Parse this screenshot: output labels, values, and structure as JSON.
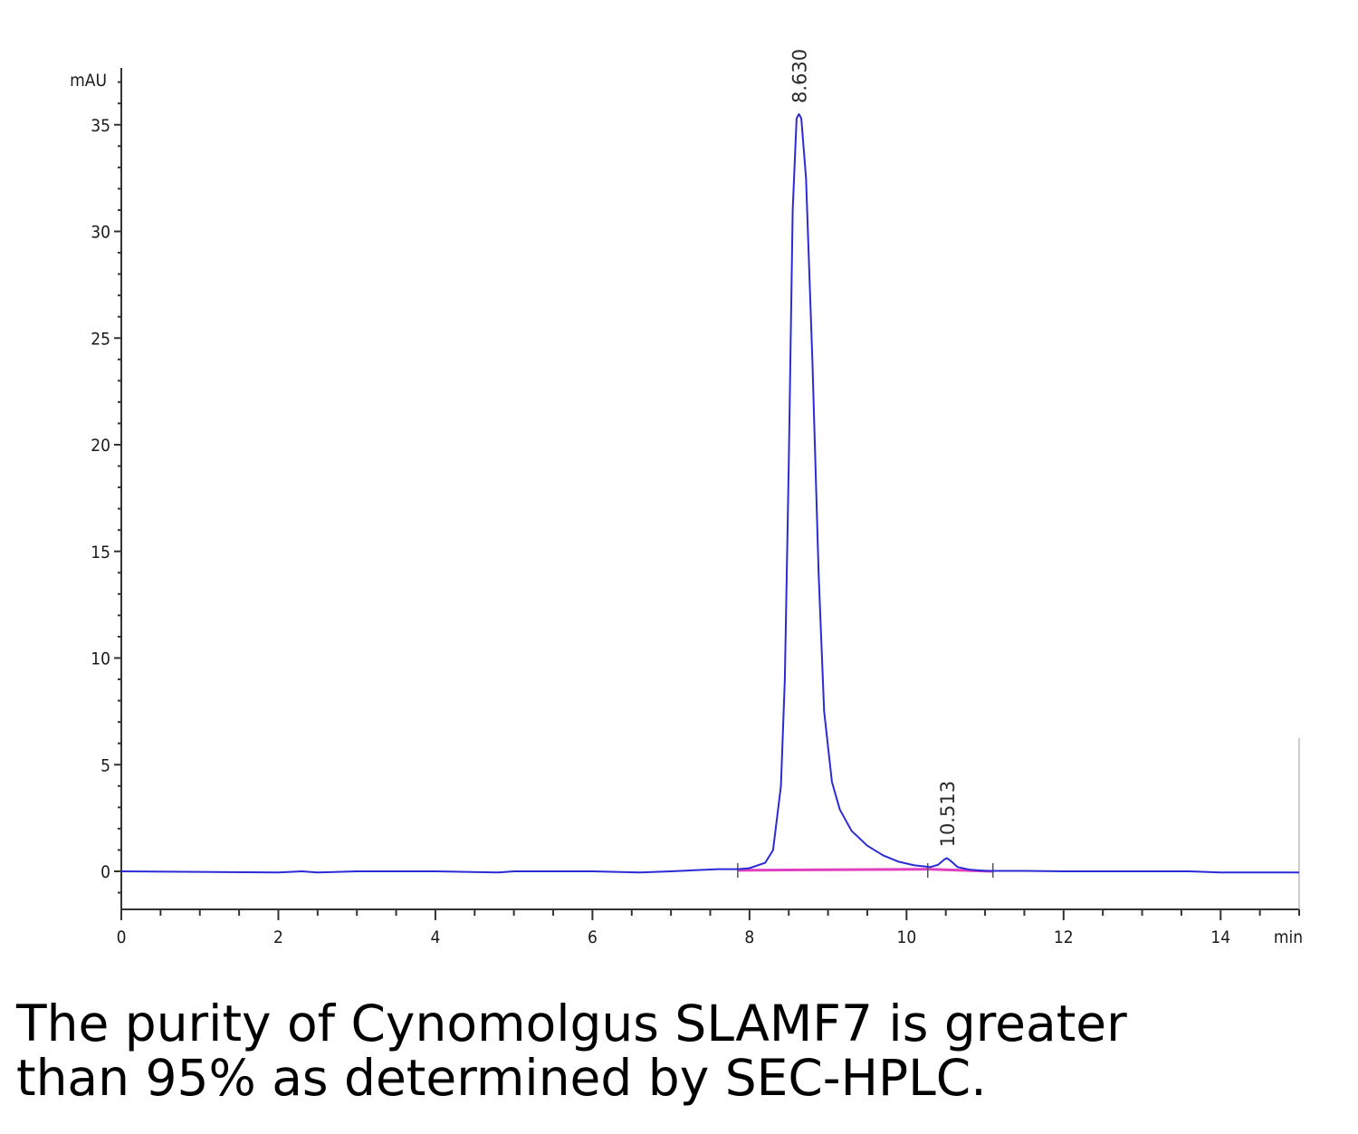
{
  "chart_data": {
    "type": "line",
    "y_unit_label": "mAU",
    "x_unit_label": "min",
    "xlim": [
      0,
      15
    ],
    "ylim": [
      -1.8,
      37
    ],
    "x_ticks": [
      0,
      2,
      4,
      6,
      8,
      10,
      12,
      14
    ],
    "y_ticks": [
      0,
      5,
      10,
      15,
      20,
      25,
      30,
      35
    ],
    "series": [
      {
        "color": "#2b2bd6",
        "points": [
          [
            0,
            0
          ],
          [
            2,
            -0.05
          ],
          [
            2.3,
            0
          ],
          [
            2.5,
            -0.05
          ],
          [
            3,
            0
          ],
          [
            4,
            0
          ],
          [
            4.8,
            -0.05
          ],
          [
            5,
            0
          ],
          [
            6,
            0
          ],
          [
            6.6,
            -0.05
          ],
          [
            7,
            0
          ],
          [
            7.3,
            0.05
          ],
          [
            7.6,
            0.1
          ],
          [
            7.85,
            0.1
          ],
          [
            8.0,
            0.15
          ],
          [
            8.2,
            0.4
          ],
          [
            8.3,
            1.0
          ],
          [
            8.4,
            4
          ],
          [
            8.45,
            9
          ],
          [
            8.5,
            19
          ],
          [
            8.55,
            31
          ],
          [
            8.6,
            35.3
          ],
          [
            8.63,
            35.5
          ],
          [
            8.66,
            35.3
          ],
          [
            8.72,
            32.5
          ],
          [
            8.8,
            24
          ],
          [
            8.88,
            14
          ],
          [
            8.95,
            7.5
          ],
          [
            9.05,
            4.2
          ],
          [
            9.15,
            2.9
          ],
          [
            9.3,
            1.9
          ],
          [
            9.5,
            1.2
          ],
          [
            9.7,
            0.75
          ],
          [
            9.9,
            0.45
          ],
          [
            10.1,
            0.28
          ],
          [
            10.3,
            0.2
          ],
          [
            10.4,
            0.3
          ],
          [
            10.48,
            0.55
          ],
          [
            10.513,
            0.62
          ],
          [
            10.56,
            0.5
          ],
          [
            10.65,
            0.2
          ],
          [
            10.8,
            0.08
          ],
          [
            11,
            0.02
          ],
          [
            11.5,
            0.02
          ],
          [
            12,
            0
          ],
          [
            13,
            0
          ],
          [
            13.6,
            0
          ],
          [
            14,
            -0.05
          ],
          [
            15,
            -0.05
          ]
        ]
      }
    ],
    "baseline": {
      "color": "#e040c0",
      "segments": [
        [
          [
            7.85,
            0.05
          ],
          [
            10.27,
            0.1
          ]
        ],
        [
          [
            10.27,
            0.1
          ],
          [
            11.1,
            0
          ]
        ]
      ]
    },
    "peak_labels": [
      {
        "x": 8.63,
        "y": 35.5,
        "text": "8.630"
      },
      {
        "x": 10.513,
        "y": 0.62,
        "text": "10.513"
      }
    ]
  },
  "caption": {
    "line1": "The purity of Cynomolgus SLAMF7 is greater",
    "line2": "than 95% as determined by SEC-HPLC."
  }
}
